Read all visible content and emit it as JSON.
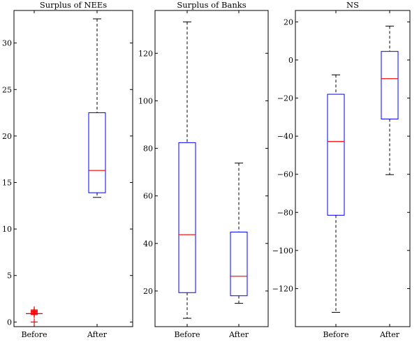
{
  "chart_data": [
    {
      "type": "box",
      "title": "Surplus of NEEs",
      "categories": [
        "Before",
        "After"
      ],
      "ylim": [
        -0.5,
        33.5
      ],
      "yticks": [
        0,
        5,
        10,
        15,
        20,
        25,
        30
      ],
      "boxes": [
        {
          "category": "Before",
          "min": 0.9,
          "q1": 0.9,
          "median": 0.9,
          "q3": 0.9,
          "max": 0.9,
          "outliers": [
            0.0,
            0.8,
            0.9,
            1.0,
            1.1,
            1.2,
            1.3
          ]
        },
        {
          "category": "After",
          "min": 13.4,
          "q1": 13.9,
          "median": 16.3,
          "q3": 22.5,
          "max": 32.6,
          "outliers": []
        }
      ]
    },
    {
      "type": "box",
      "title": "Surplus of Banks",
      "categories": [
        "Before",
        "After"
      ],
      "ylim": [
        5,
        138
      ],
      "yticks": [
        20,
        40,
        60,
        80,
        100,
        120
      ],
      "boxes": [
        {
          "category": "Before",
          "min": 8.5,
          "q1": 19.3,
          "median": 43.7,
          "q3": 82.4,
          "max": 133.2,
          "outliers": []
        },
        {
          "category": "After",
          "min": 14.8,
          "q1": 18.0,
          "median": 26.2,
          "q3": 44.8,
          "max": 73.8,
          "outliers": []
        }
      ]
    },
    {
      "type": "box",
      "title": "NS",
      "categories": [
        "Before",
        "After"
      ],
      "ylim": [
        -140,
        26
      ],
      "yticks": [
        -120,
        -100,
        -80,
        -60,
        -40,
        -20,
        0,
        20
      ],
      "boxes": [
        {
          "category": "Before",
          "min": -132.5,
          "q1": -81.5,
          "median": -42.8,
          "q3": -18.0,
          "max": -7.8,
          "outliers": []
        },
        {
          "category": "After",
          "min": -60.2,
          "q1": -31.0,
          "median": -9.8,
          "q3": 4.5,
          "max": 17.8,
          "outliers": []
        }
      ]
    }
  ]
}
